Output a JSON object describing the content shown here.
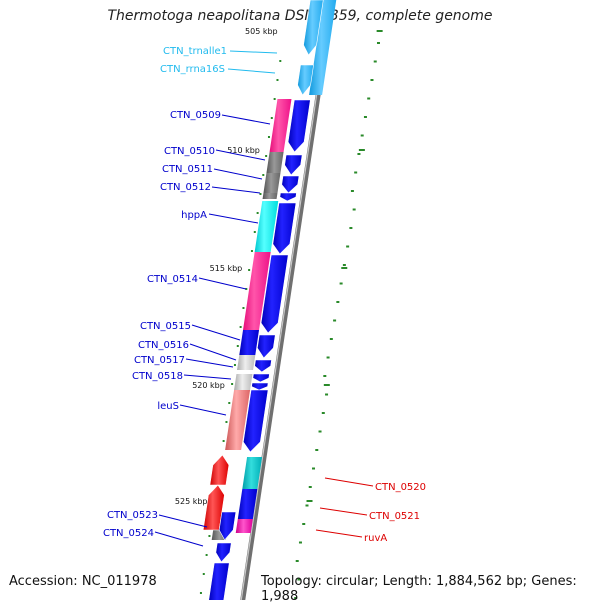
{
  "title": "Thermotoga neapolitana DSM 4359, complete genome",
  "footer": {
    "accession": "Accession: NC_011978",
    "topology": "Topology: circular; Length: 1,884,562 bp; Genes: 1,988"
  },
  "colors": {
    "backbone": "#888888",
    "forward_label": "#0000cc",
    "reverse_label": "#dd0000",
    "rna_label": "#22bbee",
    "tick": "#227722"
  },
  "ticks": [
    "505 kbp",
    "510 kbp",
    "515 kbp",
    "520 kbp",
    "525 kbp"
  ],
  "genes": [
    {
      "label": "CTN_trnalle1",
      "strand": "forward",
      "kind": "rna"
    },
    {
      "label": "CTN_rrna16S",
      "strand": "forward",
      "kind": "rna"
    },
    {
      "label": "CTN_0509",
      "strand": "forward",
      "kind": "cds"
    },
    {
      "label": "CTN_0510",
      "strand": "forward",
      "kind": "cds"
    },
    {
      "label": "CTN_0511",
      "strand": "forward",
      "kind": "cds"
    },
    {
      "label": "CTN_0512",
      "strand": "forward",
      "kind": "cds"
    },
    {
      "label": "hppA",
      "strand": "forward",
      "kind": "cds"
    },
    {
      "label": "CTN_0514",
      "strand": "forward",
      "kind": "cds"
    },
    {
      "label": "CTN_0515",
      "strand": "forward",
      "kind": "cds"
    },
    {
      "label": "CTN_0516",
      "strand": "forward",
      "kind": "cds"
    },
    {
      "label": "CTN_0517",
      "strand": "forward",
      "kind": "cds"
    },
    {
      "label": "CTN_0518",
      "strand": "forward",
      "kind": "cds"
    },
    {
      "label": "leuS",
      "strand": "forward",
      "kind": "cds"
    },
    {
      "label": "CTN_0520",
      "strand": "reverse",
      "kind": "cds"
    },
    {
      "label": "CTN_0521",
      "strand": "reverse",
      "kind": "cds"
    },
    {
      "label": "ruvA",
      "strand": "reverse",
      "kind": "cds"
    },
    {
      "label": "CTN_0523",
      "strand": "forward",
      "kind": "cds"
    },
    {
      "label": "CTN_0524",
      "strand": "forward",
      "kind": "cds"
    }
  ]
}
